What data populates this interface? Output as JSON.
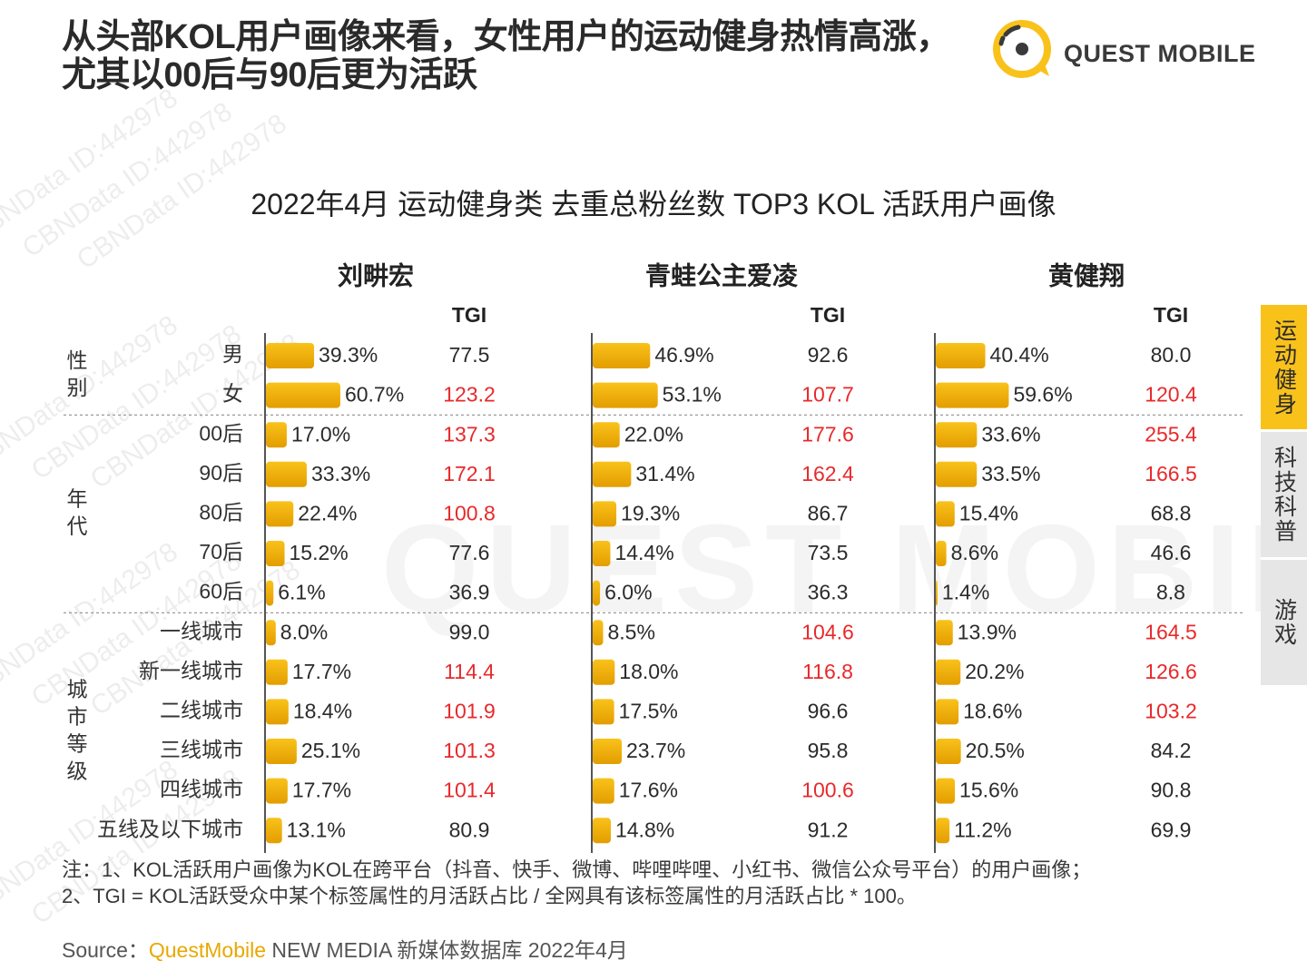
{
  "header": {
    "title": "从头部KOL用户画像来看，女性用户的运动健身热情高涨，尤其以00后与90后更为活跃",
    "logo_text": "QUEST MOBILE"
  },
  "watermark": {
    "text": "CBNData ID:442978",
    "big_text": "QUEST MOBILE"
  },
  "side_tabs": [
    {
      "label": "运动健身",
      "active": true
    },
    {
      "label": "科技科普",
      "active": false
    },
    {
      "label": "游戏",
      "active": false
    }
  ],
  "colors": {
    "bar": "#f9c21b",
    "bar_dark": "#e39d00",
    "highlight": "#e8292b",
    "text": "#2b2b2b"
  },
  "chart_data": {
    "type": "bar",
    "title": "2022年4月 运动健身类 去重总粉丝数 TOP3 KOL 活跃用户画像",
    "tgi_label": "TGI",
    "groups": [
      {
        "label": "性别",
        "categories": [
          "男",
          "女"
        ]
      },
      {
        "label": "年代",
        "categories": [
          "00后",
          "90后",
          "80后",
          "70后",
          "60后"
        ]
      },
      {
        "label": "城市等级",
        "categories": [
          "一线城市",
          "新一线城市",
          "二线城市",
          "三线城市",
          "四线城市",
          "五线及以下城市"
        ]
      }
    ],
    "categories": [
      "男",
      "女",
      "00后",
      "90后",
      "80后",
      "70后",
      "60后",
      "一线城市",
      "新一线城市",
      "二线城市",
      "三线城市",
      "四线城市",
      "五线及以下城市"
    ],
    "series": [
      {
        "name": "刘畊宏",
        "values": [
          39.3,
          60.7,
          17.0,
          33.3,
          22.4,
          15.2,
          6.1,
          8.0,
          17.7,
          18.4,
          25.1,
          17.7,
          13.1
        ],
        "labels": [
          "39.3%",
          "60.7%",
          "17.0%",
          "33.3%",
          "22.4%",
          "15.2%",
          "6.1%",
          "8.0%",
          "17.7%",
          "18.4%",
          "25.1%",
          "17.7%",
          "13.1%"
        ],
        "tgi": [
          "77.5",
          "123.2",
          "137.3",
          "172.1",
          "100.8",
          "77.6",
          "36.9",
          "99.0",
          "114.4",
          "101.9",
          "101.3",
          "101.4",
          "80.9"
        ]
      },
      {
        "name": "青蛙公主爱凌",
        "values": [
          46.9,
          53.1,
          22.0,
          31.4,
          19.3,
          14.4,
          6.0,
          8.5,
          18.0,
          17.5,
          23.7,
          17.6,
          14.8
        ],
        "labels": [
          "46.9%",
          "53.1%",
          "22.0%",
          "31.4%",
          "19.3%",
          "14.4%",
          "6.0%",
          "8.5%",
          "18.0%",
          "17.5%",
          "23.7%",
          "17.6%",
          "14.8%"
        ],
        "tgi": [
          "92.6",
          "107.7",
          "177.6",
          "162.4",
          "86.7",
          "73.5",
          "36.3",
          "104.6",
          "116.8",
          "96.6",
          "95.8",
          "100.6",
          "91.2"
        ]
      },
      {
        "name": "黄健翔",
        "values": [
          40.4,
          59.6,
          33.6,
          33.5,
          15.4,
          8.6,
          1.4,
          13.9,
          20.2,
          18.6,
          20.5,
          15.6,
          11.2
        ],
        "labels": [
          "40.4%",
          "59.6%",
          "33.6%",
          "33.5%",
          "15.4%",
          "8.6%",
          "1.4%",
          "13.9%",
          "20.2%",
          "18.6%",
          "20.5%",
          "15.6%",
          "11.2%"
        ],
        "tgi": [
          "80.0",
          "120.4",
          "255.4",
          "166.5",
          "68.8",
          "46.6",
          "8.8",
          "164.5",
          "126.6",
          "103.2",
          "84.2",
          "90.8",
          "69.9"
        ]
      }
    ]
  },
  "notes": [
    "注：1、KOL活跃用户画像为KOL在跨平台（抖音、快手、微博、哔哩哔哩、小红书、微信公众号平台）的用户画像；",
    "2、TGI = KOL活跃受众中某个标签属性的月活跃占比 / 全网具有该标签属性的月活跃占比 * 100。"
  ],
  "source": {
    "prefix": "Source：",
    "brand": "QuestMobile",
    "suffix": " NEW MEDIA 新媒体数据库 2022年4月"
  }
}
